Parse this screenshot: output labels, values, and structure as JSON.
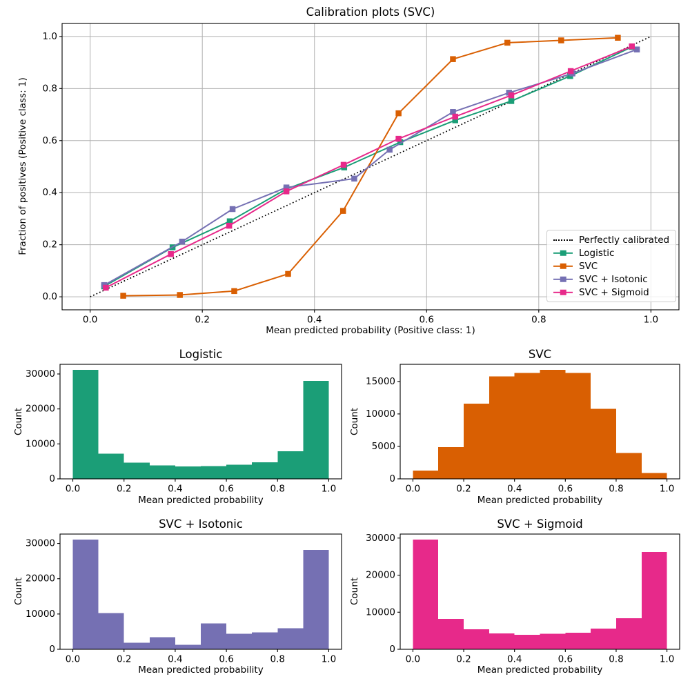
{
  "colors": {
    "logistic": "#1b9e77",
    "svc": "#d95f02",
    "isotonic": "#7570b3",
    "sigmoid": "#e7298a",
    "grid": "#b0b0b0",
    "reference": "#000000"
  },
  "chart_data": [
    {
      "type": "line",
      "title": "Calibration plots (SVC)",
      "xlabel": "Mean predicted probability (Positive class: 1)",
      "ylabel": "Fraction of positives (Positive class: 1)",
      "xlim": [
        -0.05,
        1.05
      ],
      "ylim": [
        -0.05,
        1.05
      ],
      "xticks": [
        0.0,
        0.2,
        0.4,
        0.6,
        0.8,
        1.0
      ],
      "xtick_labels": [
        "0.0",
        "0.2",
        "0.4",
        "0.6",
        "0.8",
        "1.0"
      ],
      "yticks": [
        0.0,
        0.2,
        0.4,
        0.6,
        0.8,
        1.0
      ],
      "ytick_labels": [
        "0.0",
        "0.2",
        "0.4",
        "0.6",
        "0.8",
        "1.0"
      ],
      "grid": true,
      "legend": {
        "position": "lower right",
        "entries": [
          "Perfectly calibrated",
          "Logistic",
          "SVC",
          "SVC + Isotonic",
          "SVC + Sigmoid"
        ]
      },
      "reference_line": {
        "label": "Perfectly calibrated",
        "style": "dotted",
        "color": "#000000",
        "x": [
          0.0,
          1.0
        ],
        "y": [
          0.0,
          1.0
        ]
      },
      "series": [
        {
          "name": "Logistic",
          "color": "#1b9e77",
          "marker": "square",
          "x": [
            0.025,
            0.147,
            0.249,
            0.35,
            0.453,
            0.553,
            0.651,
            0.751,
            0.856,
            0.966
          ],
          "y": [
            0.04,
            0.19,
            0.29,
            0.414,
            0.497,
            0.594,
            0.678,
            0.752,
            0.848,
            0.96
          ]
        },
        {
          "name": "SVC",
          "color": "#d95f02",
          "marker": "square",
          "x": [
            0.059,
            0.16,
            0.257,
            0.353,
            0.451,
            0.55,
            0.647,
            0.744,
            0.84,
            0.941
          ],
          "y": [
            0.004,
            0.007,
            0.022,
            0.088,
            0.33,
            0.705,
            0.913,
            0.976,
            0.985,
            0.995
          ]
        },
        {
          "name": "SVC + Isotonic",
          "color": "#7570b3",
          "marker": "square",
          "x": [
            0.025,
            0.164,
            0.254,
            0.35,
            0.471,
            0.534,
            0.647,
            0.747,
            0.86,
            0.975
          ],
          "y": [
            0.045,
            0.212,
            0.337,
            0.42,
            0.454,
            0.565,
            0.71,
            0.784,
            0.858,
            0.95
          ]
        },
        {
          "name": "SVC + Sigmoid",
          "color": "#e7298a",
          "marker": "square",
          "x": [
            0.028,
            0.144,
            0.248,
            0.35,
            0.452,
            0.55,
            0.651,
            0.751,
            0.857,
            0.966
          ],
          "y": [
            0.035,
            0.164,
            0.273,
            0.405,
            0.507,
            0.607,
            0.692,
            0.774,
            0.867,
            0.962
          ]
        }
      ]
    },
    {
      "type": "bar",
      "subtype": "histogram",
      "title": "Logistic",
      "xlabel": "Mean predicted probability",
      "ylabel": "Count",
      "color": "#1b9e77",
      "bin_start": 0.0,
      "bin_width": 0.1,
      "counts": [
        31200,
        7200,
        4600,
        3800,
        3600,
        3700,
        4000,
        4700,
        7900,
        28000
      ],
      "xlim": [
        -0.05,
        1.05
      ],
      "ylim": [
        0,
        32760
      ],
      "xticks": [
        0.0,
        0.2,
        0.4,
        0.6,
        0.8,
        1.0
      ],
      "xtick_labels": [
        "0.0",
        "0.2",
        "0.4",
        "0.6",
        "0.8",
        "1.0"
      ],
      "yticks": [
        0,
        10000,
        20000,
        30000
      ],
      "ytick_labels": [
        "0",
        "10000",
        "20000",
        "30000"
      ],
      "grid": false
    },
    {
      "type": "bar",
      "subtype": "histogram",
      "title": "SVC",
      "xlabel": "Mean predicted probability",
      "ylabel": "Count",
      "color": "#d95f02",
      "bin_start": 0.0,
      "bin_width": 0.1,
      "counts": [
        1300,
        4900,
        11600,
        15800,
        16300,
        16800,
        16300,
        10800,
        4000,
        900
      ],
      "xlim": [
        -0.05,
        1.05
      ],
      "ylim": [
        0,
        17640
      ],
      "xticks": [
        0.0,
        0.2,
        0.4,
        0.6,
        0.8,
        1.0
      ],
      "xtick_labels": [
        "0.0",
        "0.2",
        "0.4",
        "0.6",
        "0.8",
        "1.0"
      ],
      "yticks": [
        0,
        5000,
        10000,
        15000
      ],
      "ytick_labels": [
        "0",
        "5000",
        "10000",
        "15000"
      ],
      "grid": false
    },
    {
      "type": "bar",
      "subtype": "histogram",
      "title": "SVC + Isotonic",
      "xlabel": "Mean predicted probability",
      "ylabel": "Count",
      "color": "#7570b3",
      "bin_start": 0.0,
      "bin_width": 0.1,
      "counts": [
        31100,
        10300,
        1900,
        3400,
        1300,
        7300,
        4400,
        4800,
        6000,
        28200
      ],
      "xlim": [
        -0.05,
        1.05
      ],
      "ylim": [
        0,
        32655
      ],
      "xticks": [
        0.0,
        0.2,
        0.4,
        0.6,
        0.8,
        1.0
      ],
      "xtick_labels": [
        "0.0",
        "0.2",
        "0.4",
        "0.6",
        "0.8",
        "1.0"
      ],
      "yticks": [
        0,
        10000,
        20000,
        30000
      ],
      "ytick_labels": [
        "0",
        "10000",
        "20000",
        "30000"
      ],
      "grid": false
    },
    {
      "type": "bar",
      "subtype": "histogram",
      "title": "SVC + Sigmoid",
      "xlabel": "Mean predicted probability",
      "ylabel": "Count",
      "color": "#e7298a",
      "bin_start": 0.0,
      "bin_width": 0.1,
      "counts": [
        29600,
        8200,
        5400,
        4300,
        3900,
        4200,
        4500,
        5600,
        8400,
        26200
      ],
      "xlim": [
        -0.05,
        1.05
      ],
      "ylim": [
        0,
        31080
      ],
      "xticks": [
        0.0,
        0.2,
        0.4,
        0.6,
        0.8,
        1.0
      ],
      "xtick_labels": [
        "0.0",
        "0.2",
        "0.4",
        "0.6",
        "0.8",
        "1.0"
      ],
      "yticks": [
        0,
        10000,
        20000,
        30000
      ],
      "ytick_labels": [
        "0",
        "10000",
        "20000",
        "30000"
      ],
      "grid": false
    }
  ]
}
